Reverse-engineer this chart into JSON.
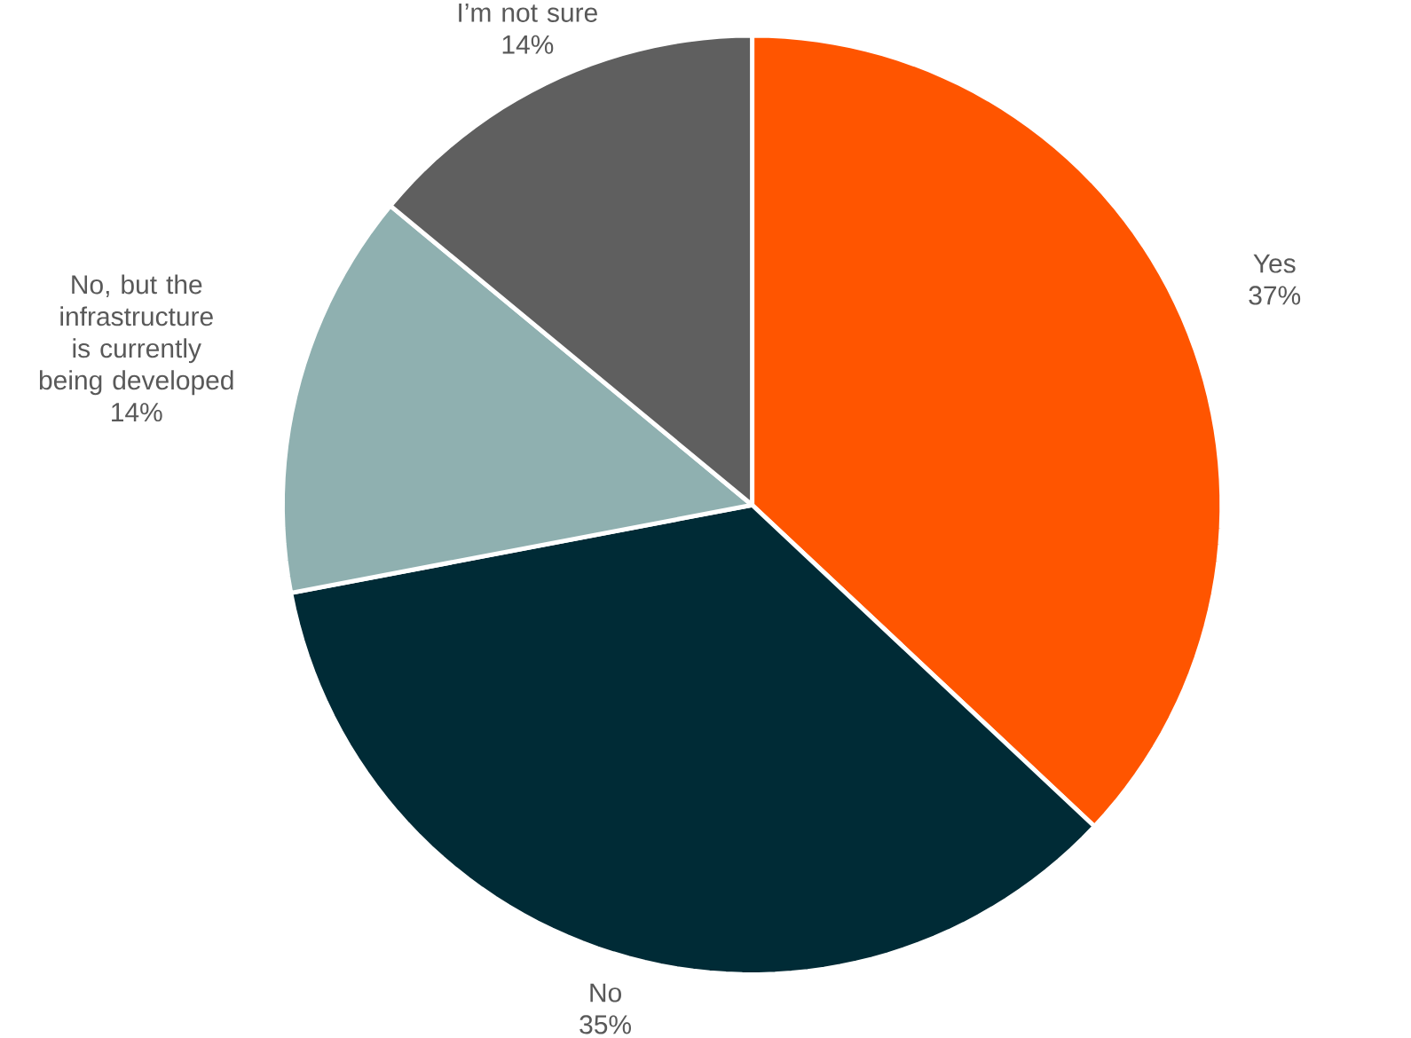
{
  "chart_data": {
    "type": "pie",
    "categories": [
      "Yes",
      "No",
      "No, but the infrastructure is currently being developed",
      "I’m not sure"
    ],
    "values": [
      37,
      35,
      14,
      14
    ],
    "value_labels": [
      "37%",
      "35%",
      "14%",
      "14%"
    ],
    "colors": [
      "#ff5500",
      "#002b36",
      "#8fb0b0",
      "#5f5f5f"
    ]
  }
}
